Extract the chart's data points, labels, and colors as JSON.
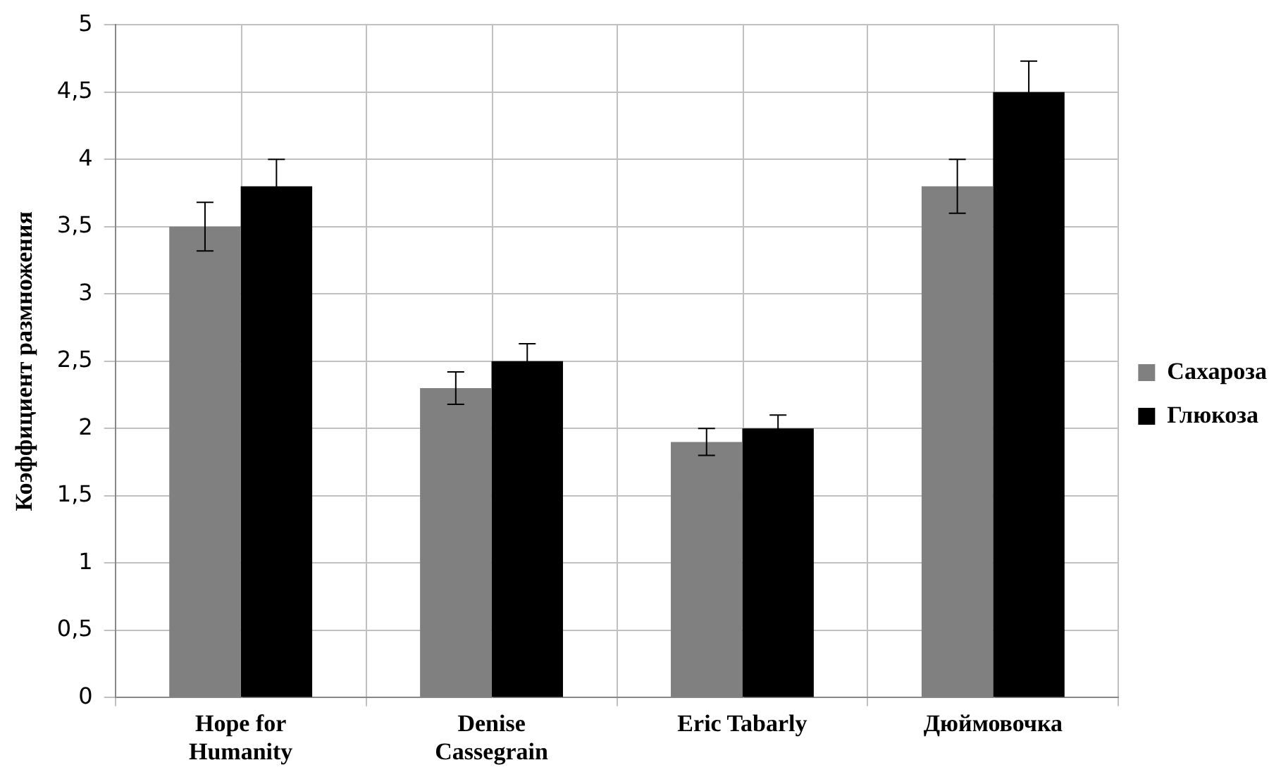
{
  "chart_data": {
    "type": "bar",
    "ylabel": "Коэффициент размножения",
    "categories": [
      "Hope for Humanity",
      "Denise Cassegrain",
      "Eric Tabarly",
      "Дюймовочка"
    ],
    "series": [
      {
        "name": "Сахароза",
        "color": "#808080",
        "values": [
          3.5,
          2.3,
          1.9,
          3.8
        ],
        "errors": [
          0.18,
          0.12,
          0.1,
          0.2
        ]
      },
      {
        "name": "Глюкоза",
        "color": "#000000",
        "values": [
          3.8,
          2.5,
          2.0,
          4.5
        ],
        "errors": [
          0.2,
          0.13,
          0.1,
          0.23
        ]
      }
    ],
    "ylim": [
      0,
      5
    ],
    "yticks": [
      0,
      {
        "value": 0.5,
        "label": "0,5"
      },
      1,
      {
        "value": 1.5,
        "label": "1,5"
      },
      2,
      {
        "value": 2.5,
        "label": "2,5"
      },
      3,
      {
        "value": 3.5,
        "label": "3,5"
      },
      4,
      {
        "value": 4.5,
        "label": "4,5"
      },
      5
    ],
    "grid": true,
    "legend": "right"
  }
}
